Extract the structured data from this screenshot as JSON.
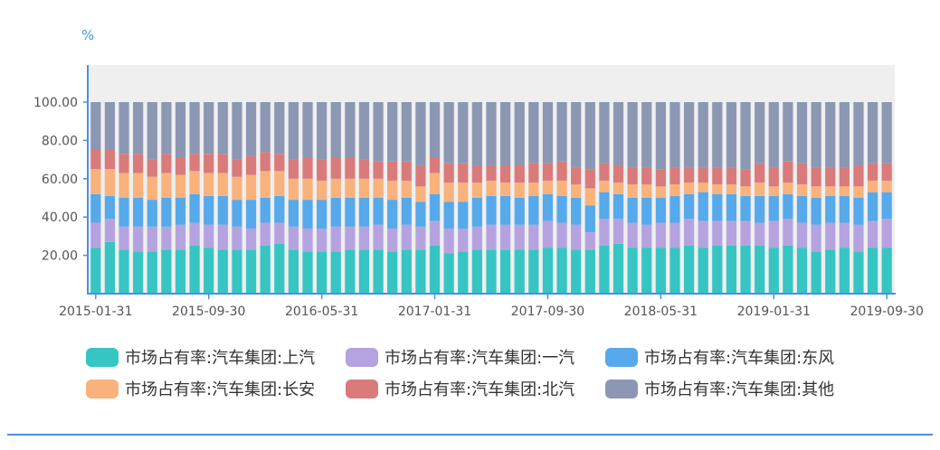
{
  "chart_data": {
    "type": "bar",
    "stacked": true,
    "unit": "%",
    "y_ticks": [
      "20.00",
      "40.00",
      "60.00",
      "80.00",
      "100.00"
    ],
    "ylim": [
      0,
      100
    ],
    "x_tick_labels": [
      "2015-01-31",
      "2015-09-30",
      "2016-05-31",
      "2017-01-31",
      "2017-09-30",
      "2018-05-31",
      "2019-01-31",
      "2019-09-30"
    ],
    "categories": [
      "2015-01-31",
      "2015-02-28",
      "2015-03-31",
      "2015-04-30",
      "2015-05-31",
      "2015-06-30",
      "2015-07-31",
      "2015-08-31",
      "2015-09-30",
      "2015-10-31",
      "2015-11-30",
      "2015-12-31",
      "2016-01-31",
      "2016-02-29",
      "2016-03-31",
      "2016-04-30",
      "2016-05-31",
      "2016-06-30",
      "2016-07-31",
      "2016-08-31",
      "2016-09-30",
      "2016-10-31",
      "2016-11-30",
      "2016-12-31",
      "2017-01-31",
      "2017-02-28",
      "2017-03-31",
      "2017-04-30",
      "2017-05-31",
      "2017-06-30",
      "2017-07-31",
      "2017-08-31",
      "2017-09-30",
      "2017-10-31",
      "2017-11-30",
      "2017-12-31",
      "2018-01-31",
      "2018-02-28",
      "2018-03-31",
      "2018-04-30",
      "2018-05-31",
      "2018-06-30",
      "2018-07-31",
      "2018-08-31",
      "2018-09-30",
      "2018-10-31",
      "2018-11-30",
      "2018-12-31",
      "2019-01-31",
      "2019-02-28",
      "2019-03-31",
      "2019-04-30",
      "2019-05-31",
      "2019-06-30",
      "2019-07-31",
      "2019-08-31",
      "2019-09-30"
    ],
    "series": [
      {
        "name": "市场占有率:汽车集团:上汽",
        "color": "#36c5c3",
        "values": [
          24,
          27,
          23,
          22,
          22,
          23,
          23,
          25,
          24,
          23,
          23,
          23,
          25,
          26,
          23,
          22,
          22,
          22,
          23,
          23,
          23,
          22,
          23,
          23,
          25,
          21,
          22,
          23,
          23,
          23,
          23,
          23,
          24,
          24,
          23,
          23,
          25,
          26,
          24,
          24,
          24,
          24,
          25,
          24,
          25,
          25,
          25,
          25,
          24,
          25,
          24,
          22,
          23,
          24,
          22,
          24,
          24
        ]
      },
      {
        "name": "市场占有率:汽车集团:一汽",
        "color": "#b5a3e0",
        "values": [
          13,
          12,
          12,
          13,
          13,
          12,
          13,
          12,
          12,
          13,
          12,
          11,
          12,
          11,
          12,
          12,
          12,
          13,
          12,
          12,
          13,
          12,
          13,
          12,
          13,
          13,
          12,
          12,
          13,
          13,
          13,
          13,
          14,
          13,
          13,
          9,
          14,
          13,
          13,
          12,
          13,
          13,
          14,
          14,
          13,
          13,
          13,
          12,
          14,
          14,
          13,
          14,
          14,
          13,
          14,
          14,
          15
        ]
      },
      {
        "name": "市场占有率:汽车集团:东风",
        "color": "#56a9ea",
        "values": [
          15,
          12,
          15,
          15,
          14,
          15,
          14,
          15,
          15,
          15,
          14,
          15,
          13,
          14,
          14,
          15,
          15,
          15,
          15,
          15,
          14,
          15,
          14,
          13,
          14,
          14,
          14,
          15,
          15,
          15,
          14,
          15,
          14,
          14,
          14,
          14,
          14,
          13,
          13,
          14,
          13,
          14,
          13,
          15,
          14,
          14,
          13,
          14,
          13,
          13,
          14,
          14,
          14,
          14,
          14,
          15,
          14
        ]
      },
      {
        "name": "市场占有率:汽车集团:长安",
        "color": "#f9b27c",
        "values": [
          13,
          14,
          13,
          13,
          12,
          13,
          12,
          12,
          12,
          12,
          12,
          13,
          14,
          13,
          11,
          11,
          10,
          10,
          10,
          10,
          10,
          10,
          9,
          8,
          11,
          10,
          10,
          8,
          8,
          7,
          8,
          7,
          7,
          8,
          7,
          9,
          6,
          6,
          7,
          7,
          6,
          6,
          6,
          5,
          5,
          5,
          5,
          7,
          5,
          6,
          6,
          6,
          5,
          5,
          6,
          6,
          6
        ]
      },
      {
        "name": "市场占有率:汽车集团:北汽",
        "color": "#d97b7b",
        "values": [
          10,
          10,
          10,
          10,
          9,
          10,
          9,
          9,
          10,
          10,
          9,
          10,
          10,
          9,
          10,
          11,
          11,
          11,
          11,
          10,
          9,
          10,
          10,
          11,
          8,
          10,
          10,
          9,
          8,
          9,
          9,
          10,
          9,
          10,
          9,
          10,
          9,
          9,
          9,
          9,
          9,
          9,
          8,
          8,
          9,
          9,
          9,
          10,
          10,
          11,
          11,
          10,
          10,
          10,
          11,
          9,
          9
        ]
      },
      {
        "name": "市场占有率:汽车集团:其他",
        "color": "#8c97b3",
        "values": [
          25,
          25,
          27,
          27,
          30,
          27,
          29,
          27,
          27,
          27,
          30,
          28,
          26,
          27,
          30,
          29,
          30,
          29,
          29,
          30,
          31,
          31,
          31,
          33,
          29,
          32,
          32,
          33,
          33,
          33,
          33,
          32,
          32,
          31,
          34,
          35,
          32,
          33,
          34,
          34,
          35,
          34,
          34,
          34,
          34,
          34,
          35,
          32,
          34,
          31,
          32,
          34,
          34,
          34,
          33,
          32,
          32
        ]
      }
    ]
  }
}
